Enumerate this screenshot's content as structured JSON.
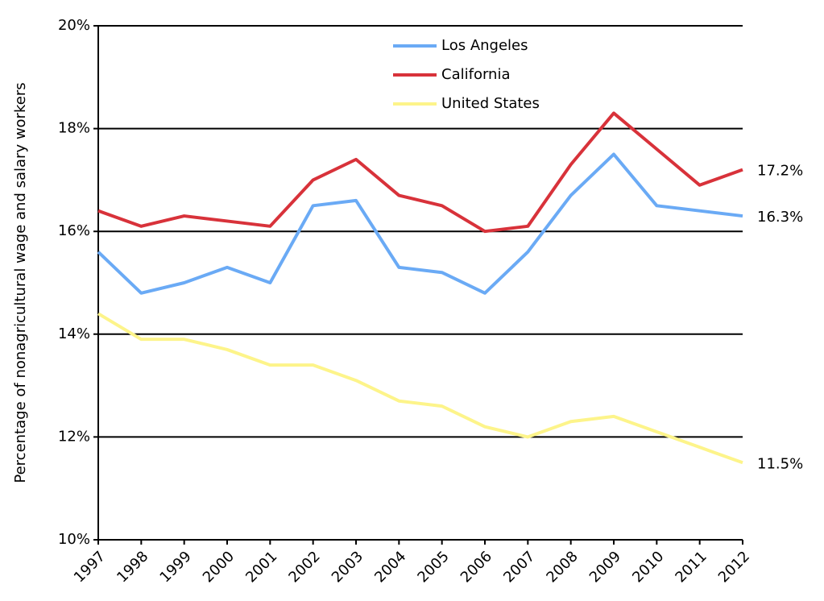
{
  "chart_data": {
    "type": "line",
    "y_axis_label": "Percentage of nonagricultural wage and salary workers",
    "categories": [
      "1997",
      "1998",
      "1999",
      "2000",
      "2001",
      "2002",
      "2003",
      "2004",
      "2005",
      "2006",
      "2007",
      "2008",
      "2009",
      "2010",
      "2011",
      "2012"
    ],
    "series": [
      {
        "name": "Los Angeles",
        "color": "#6aaaf5",
        "values": [
          15.6,
          14.8,
          15.0,
          15.3,
          15.0,
          16.5,
          16.6,
          15.3,
          15.2,
          14.8,
          15.6,
          16.7,
          17.5,
          16.5,
          16.4,
          16.3
        ],
        "value_labels": [
          null,
          null,
          null,
          null,
          null,
          null,
          null,
          null,
          null,
          null,
          null,
          null,
          null,
          null,
          null,
          "16.3%"
        ]
      },
      {
        "name": "California",
        "color": "#d8323a",
        "values": [
          16.4,
          16.1,
          16.3,
          16.2,
          16.1,
          17.0,
          17.4,
          16.7,
          16.5,
          16.0,
          16.1,
          17.3,
          18.3,
          17.6,
          16.9,
          17.2
        ],
        "value_labels": [
          null,
          null,
          null,
          null,
          null,
          null,
          null,
          null,
          null,
          null,
          null,
          null,
          null,
          null,
          null,
          "17.2%"
        ]
      },
      {
        "name": "United States",
        "color": "#fdf48a",
        "values": [
          14.4,
          13.9,
          13.9,
          13.7,
          13.4,
          13.4,
          13.1,
          12.7,
          12.6,
          12.2,
          12.0,
          12.3,
          12.4,
          12.1,
          11.8,
          11.5
        ],
        "value_labels": [
          null,
          null,
          null,
          null,
          null,
          null,
          null,
          null,
          null,
          null,
          null,
          null,
          null,
          null,
          null,
          "11.5%"
        ]
      }
    ],
    "ylim": [
      10,
      20
    ],
    "yticks": [
      {
        "value": 10,
        "label": "10%"
      },
      {
        "value": 12,
        "label": "12%"
      },
      {
        "value": 14,
        "label": "14%"
      },
      {
        "value": 16,
        "label": "16%"
      },
      {
        "value": 18,
        "label": "18%"
      },
      {
        "value": 20,
        "label": "20%"
      }
    ],
    "grid": true,
    "legend": "top"
  }
}
